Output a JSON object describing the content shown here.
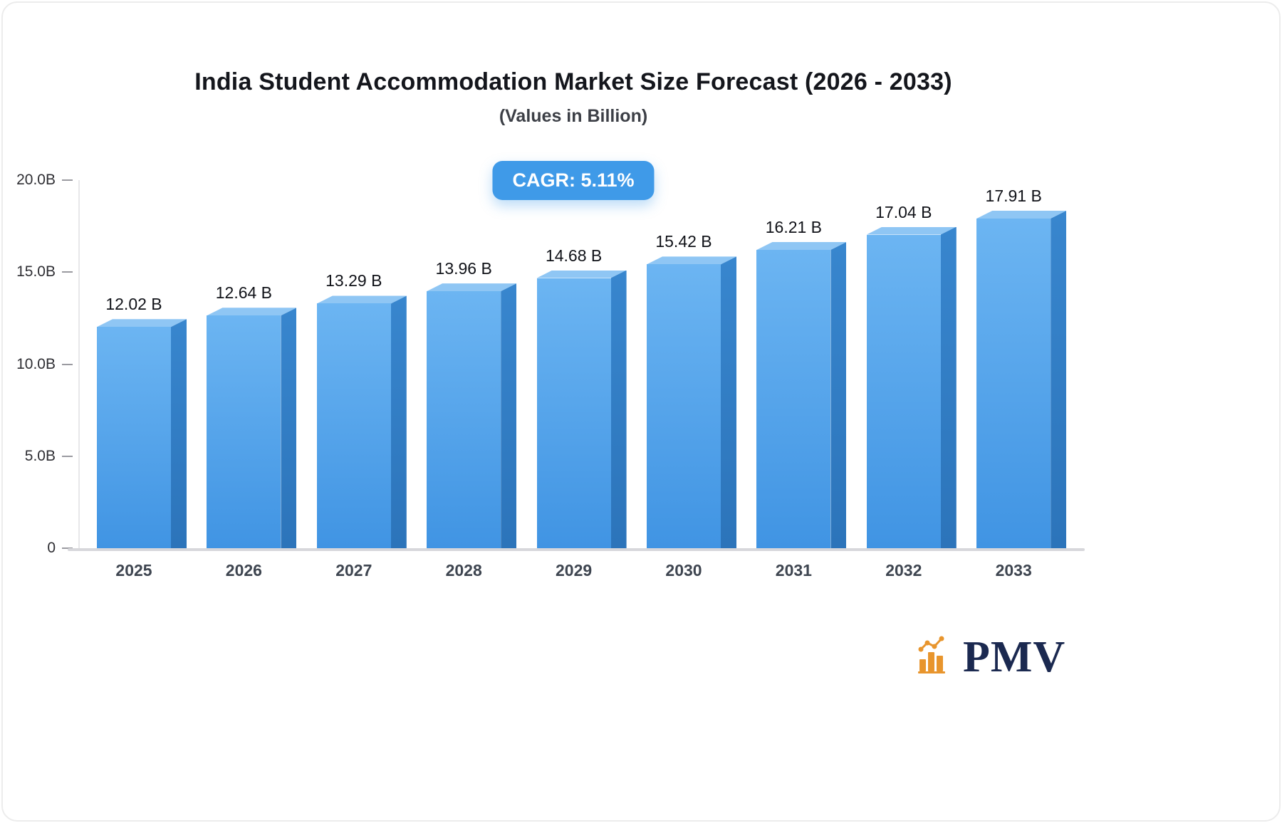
{
  "chart_data": {
    "type": "bar",
    "title": "India Student Accommodation Market Size Forecast (2026 - 2033)",
    "subtitle": "(Values in Billion)",
    "cagr_label": "CAGR: 5.11%",
    "categories": [
      "2025",
      "2026",
      "2027",
      "2028",
      "2029",
      "2030",
      "2031",
      "2032",
      "2033"
    ],
    "values": [
      12.02,
      12.64,
      13.29,
      13.96,
      14.68,
      15.42,
      16.21,
      17.04,
      17.91
    ],
    "value_labels": [
      "12.02 B",
      "12.64 B",
      "13.29 B",
      "13.96 B",
      "14.68 B",
      "15.42 B",
      "16.21 B",
      "17.04 B",
      "17.91 B"
    ],
    "unit": "B",
    "xlabel": "",
    "ylabel": "",
    "ylim": [
      0,
      20
    ],
    "yticks": [
      "20.0B",
      "15.0B",
      "10.0B",
      "5.0B",
      "0"
    ],
    "grid": false,
    "legend": false
  },
  "theme": {
    "bar_front_top": "#6cb5f2",
    "bar_front_bottom": "#4094e3",
    "bar_side_top": "#3886ce",
    "bar_side_bottom": "#2c74ba",
    "bar_top_face": "#8fc6f4",
    "badge_bg": "#3f9ae8",
    "badge_text": "#ffffff",
    "axis_color": "#d7d7db",
    "label_color": "#101218"
  },
  "logo": {
    "text": "PMV",
    "icon": "bar-chart-icon",
    "text_color": "#1b2950",
    "icon_color": "#e8952d"
  }
}
